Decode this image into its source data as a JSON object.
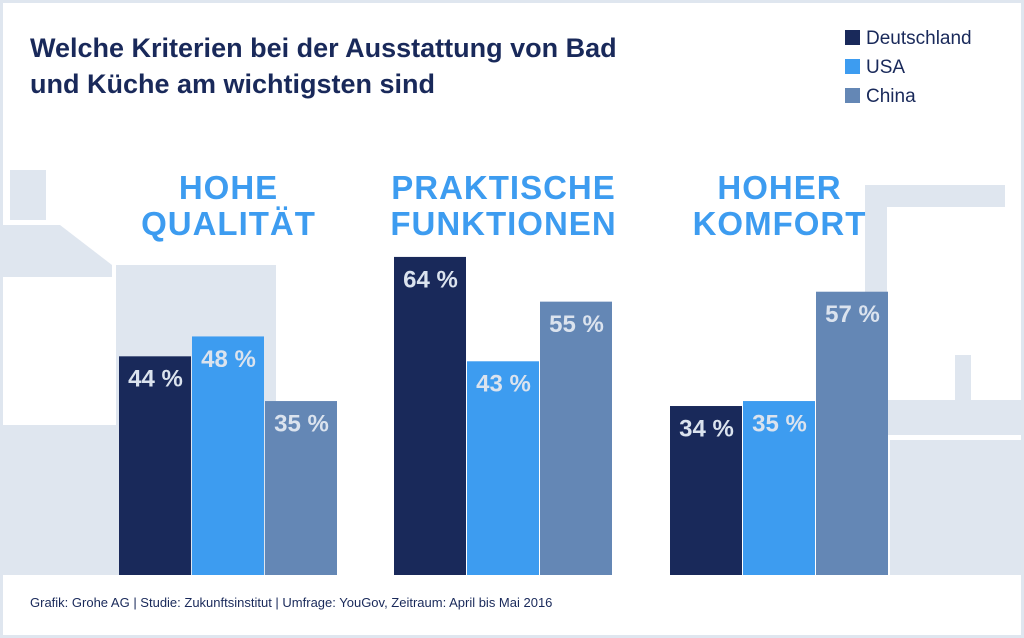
{
  "chart_data": {
    "type": "bar",
    "title": "Welche Kriterien bei der Ausstattung von Bad und Küche am wichtigsten sind",
    "categories": [
      "HOHE QUALITÄT",
      "PRAKTISCHE FUNKTIONEN",
      "HOHER KOMFORT"
    ],
    "series": [
      {
        "name": "Deutschland",
        "color": "#19295a",
        "values": [
          44,
          64,
          34
        ],
        "value_labels": [
          "44 %",
          "64 %",
          "34 %"
        ]
      },
      {
        "name": "USA",
        "color": "#3d9cf0",
        "values": [
          48,
          43,
          35
        ],
        "value_labels": [
          "48 %",
          "43 %",
          "35 %"
        ]
      },
      {
        "name": "China",
        "color": "#6487b5",
        "values": [
          35,
          55,
          57
        ],
        "value_labels": [
          "35 %",
          "55 %",
          "57 %"
        ]
      }
    ],
    "legend": "top-right",
    "source": "Grafik: Grohe AG | Studie: Zukunftsinstitut | Umfrage: YouGov, Zeitraum: April bis Mai 2016"
  }
}
